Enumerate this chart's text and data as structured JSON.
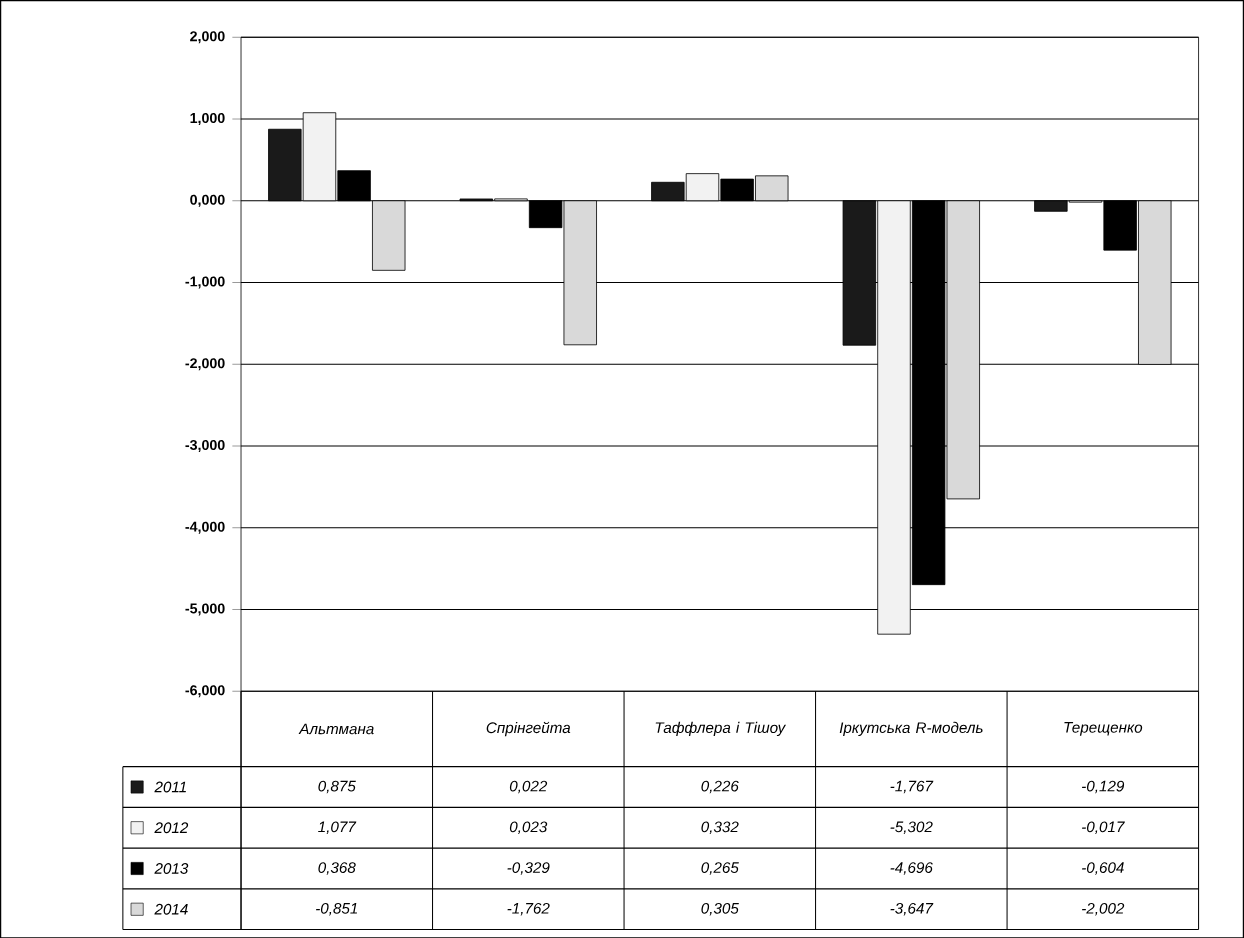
{
  "chart_data": {
    "type": "bar",
    "categories": [
      "Альтмана",
      "Спрінгейта",
      "Таффлера і Тішоу",
      "Іркутська R-модель",
      "Терещенко"
    ],
    "series": [
      {
        "name": "2011",
        "color": "#1a1a1a",
        "values": [
          0.875,
          0.022,
          0.226,
          -1.767,
          -0.129
        ],
        "value_labels": [
          "0,875",
          "0,022",
          "0,226",
          "-1,767",
          "-0,129"
        ]
      },
      {
        "name": "2012",
        "color": "#f2f2f2",
        "values": [
          1.077,
          0.023,
          0.332,
          -5.302,
          -0.017
        ],
        "value_labels": [
          "1,077",
          "0,023",
          "0,332",
          "-5,302",
          "-0,017"
        ]
      },
      {
        "name": "2013",
        "color": "#000000",
        "values": [
          0.368,
          -0.329,
          0.265,
          -4.696,
          -0.604
        ],
        "value_labels": [
          "0,368",
          "-0,329",
          "0,265",
          "-4,696",
          "-0,604"
        ]
      },
      {
        "name": "2014",
        "color": "#d9d9d9",
        "values": [
          -0.851,
          -1.762,
          0.305,
          -3.647,
          -2.002
        ],
        "value_labels": [
          "-0,851",
          "-1,762",
          "0,305",
          "-3,647",
          "-2,002"
        ]
      }
    ],
    "ylim": [
      -6,
      2
    ],
    "yticks": [
      {
        "value": 2,
        "label": "2,000"
      },
      {
        "value": 1,
        "label": "1,000"
      },
      {
        "value": 0,
        "label": "0,000"
      },
      {
        "value": -1,
        "label": "-1,000"
      },
      {
        "value": -2,
        "label": "-2,000"
      },
      {
        "value": -3,
        "label": "-3,000"
      },
      {
        "value": -4,
        "label": "-4,000"
      },
      {
        "value": -5,
        "label": "-5,000"
      },
      {
        "value": -6,
        "label": "-6,000"
      }
    ],
    "grid": "y",
    "legend": "bottom"
  }
}
